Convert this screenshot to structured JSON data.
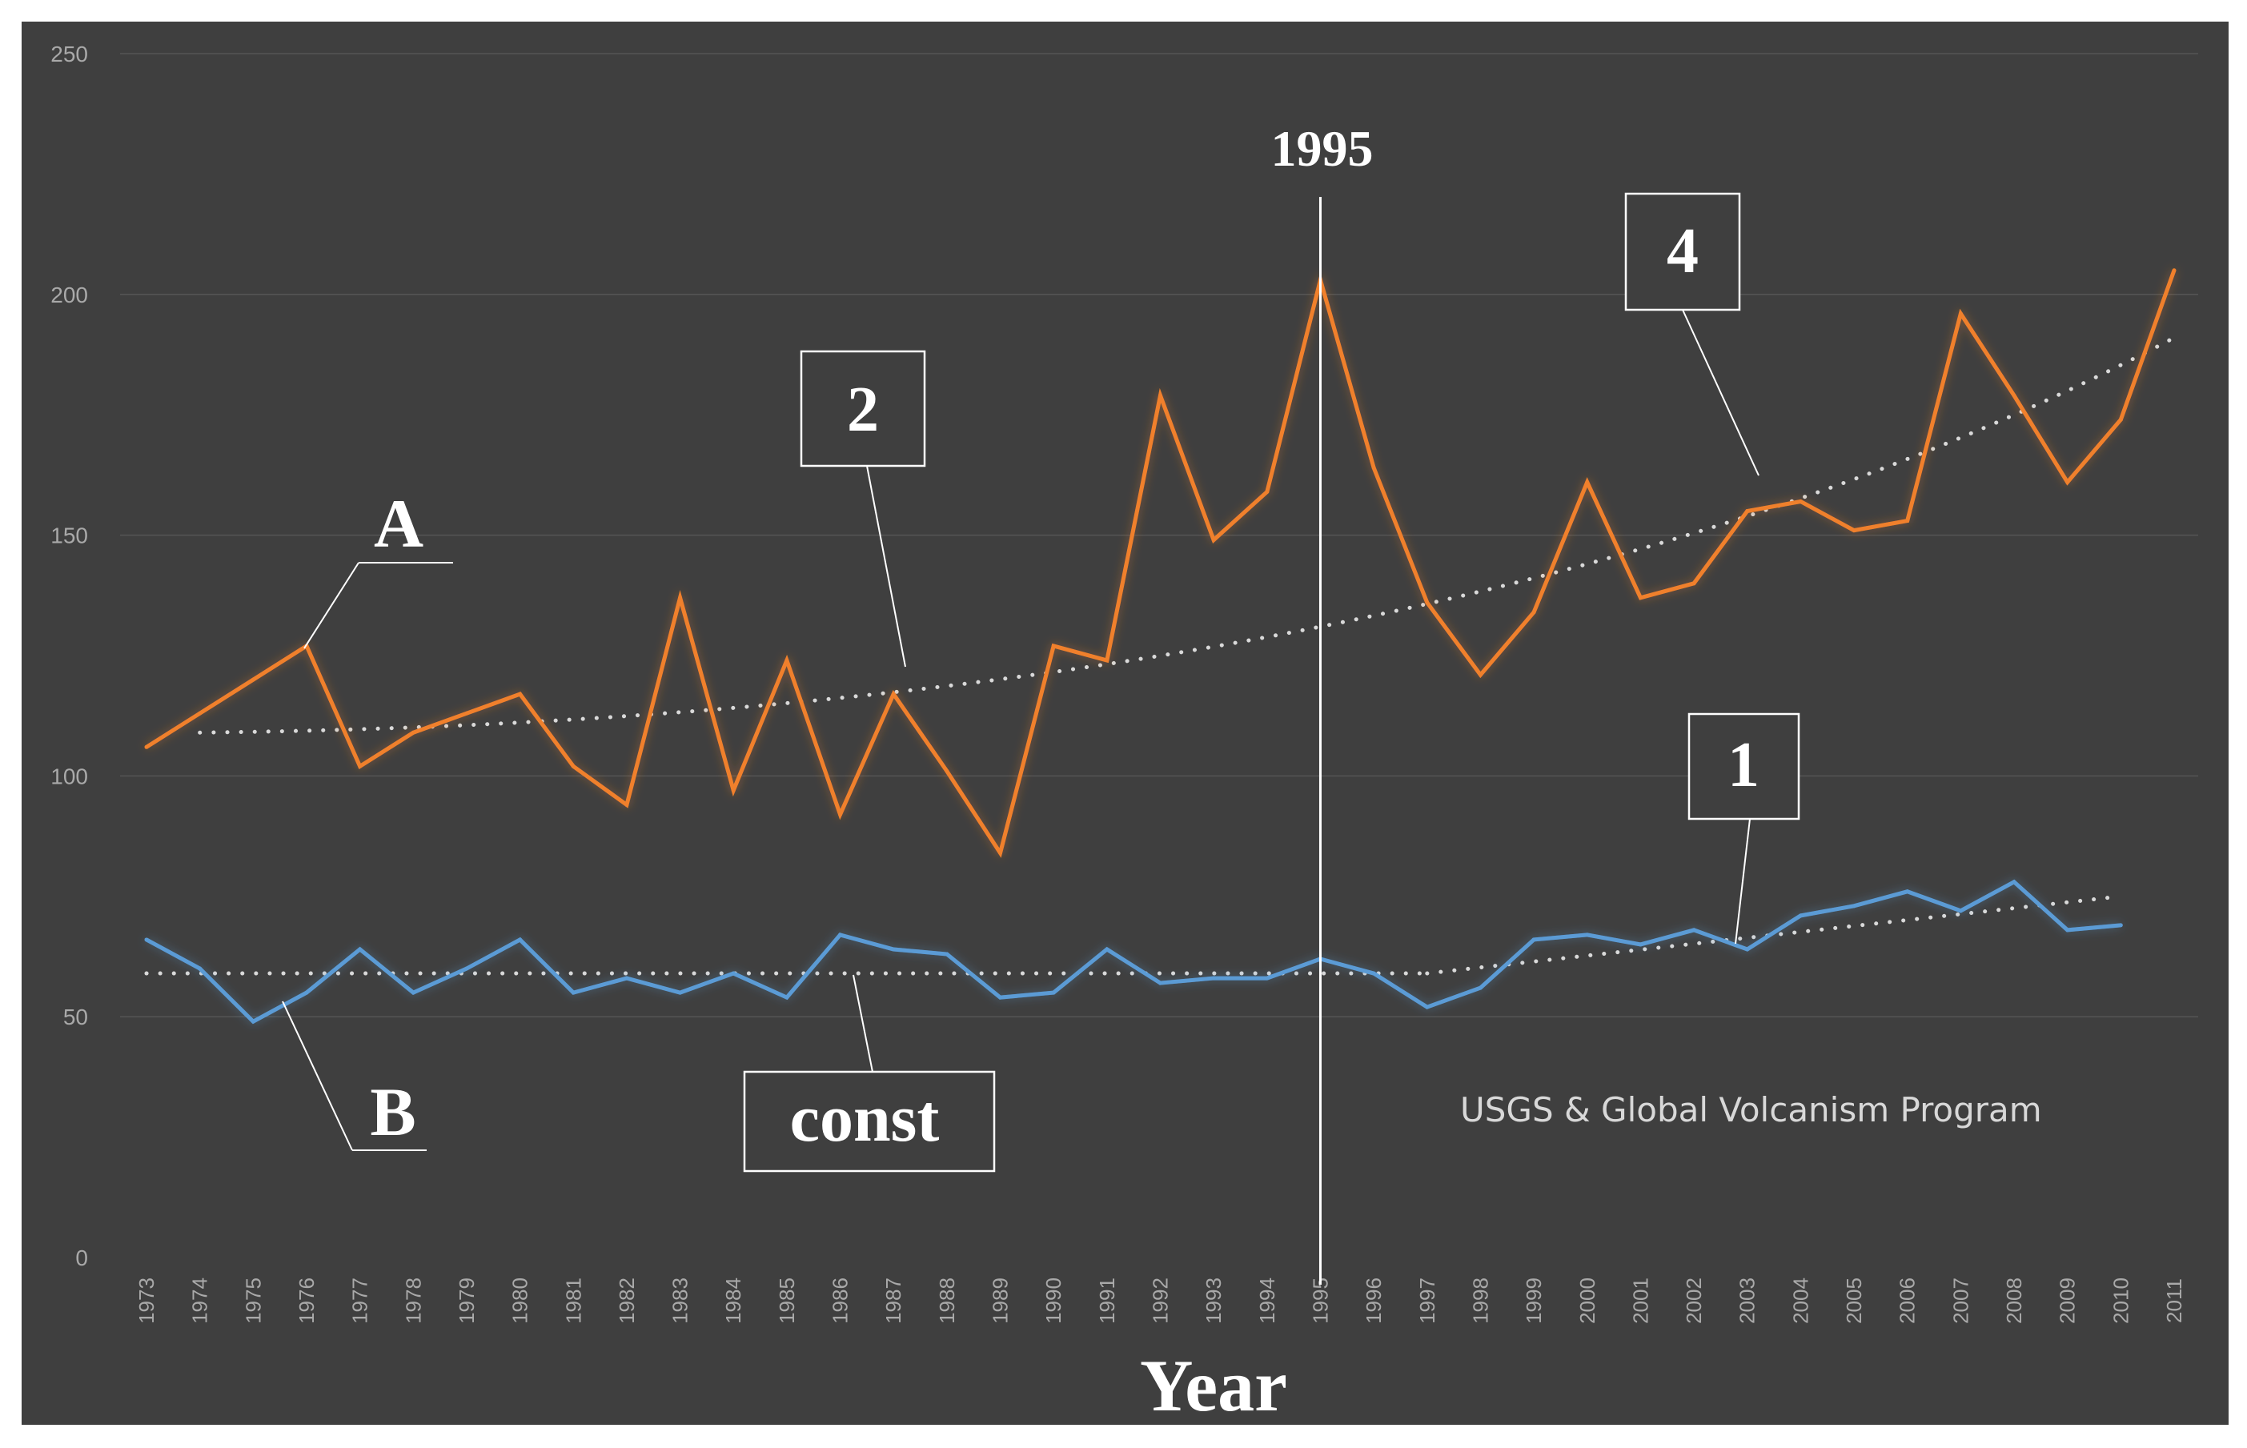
{
  "chart_data": {
    "type": "line",
    "title": "",
    "xlabel": "Year",
    "ylabel": "",
    "ylim": [
      0,
      250
    ],
    "yticks": [
      0,
      50,
      100,
      150,
      200,
      250
    ],
    "grid": true,
    "categories": [
      "1973",
      "1974",
      "1975",
      "1976",
      "1977",
      "1978",
      "1979",
      "1980",
      "1981",
      "1982",
      "1983",
      "1984",
      "1985",
      "1986",
      "1987",
      "1988",
      "1989",
      "1990",
      "1991",
      "1992",
      "1993",
      "1994",
      "1995",
      "1996",
      "1997",
      "1998",
      "1999",
      "2000",
      "2001",
      "2002",
      "2003",
      "2004",
      "2005",
      "2006",
      "2007",
      "2008",
      "2009",
      "2010",
      "2011"
    ],
    "series": [
      {
        "name": "A",
        "color": "#f0802c",
        "values": [
          106,
          113,
          120,
          127,
          102,
          109,
          113,
          117,
          102,
          94,
          137,
          97,
          124,
          92,
          117,
          101,
          84,
          127,
          124,
          179,
          149,
          159,
          203,
          164,
          136,
          121,
          134,
          161,
          137,
          140,
          155,
          157,
          151,
          153,
          196,
          179,
          161,
          174,
          205
        ]
      },
      {
        "name": "B",
        "color": "#5b9bd5",
        "values": [
          66,
          60,
          49,
          55,
          64,
          55,
          60,
          66,
          55,
          58,
          55,
          59,
          54,
          67,
          64,
          63,
          54,
          55,
          64,
          57,
          58,
          58,
          62,
          59,
          52,
          56,
          66,
          67,
          65,
          68,
          64,
          71,
          73,
          76,
          72,
          78,
          68,
          69,
          null
        ]
      }
    ],
    "trendlines": [
      {
        "name": "2",
        "series": "A",
        "shape": "polynomial",
        "color": "#d9d9d9",
        "x": [
          "1974",
          "1995",
          "2011"
        ],
        "values": [
          109,
          131,
          191
        ]
      },
      {
        "name": "const",
        "series": "B",
        "shape": "constant",
        "color": "#d9d9d9",
        "x": [
          "1973",
          "1997"
        ],
        "values": [
          59,
          59
        ]
      },
      {
        "name": "1",
        "series": "B",
        "shape": "linear",
        "color": "#d9d9d9",
        "x": [
          "1997",
          "2010"
        ],
        "values": [
          59,
          75
        ]
      }
    ],
    "reference_line": {
      "x": "1995",
      "label": "1995",
      "color": "#ffffff"
    },
    "annotations": [
      {
        "text": "A",
        "target": "series A"
      },
      {
        "text": "B",
        "target": "series B"
      },
      {
        "text": "2",
        "target": "trend 2"
      },
      {
        "text": "4",
        "target": "trend after 1995"
      },
      {
        "text": "1",
        "target": "trend 1"
      },
      {
        "text": "const",
        "target": "constant trend"
      }
    ],
    "source_note": "USGS & Global Volcanism Program"
  },
  "colors": {
    "background": "#3f3f3f",
    "gridline": "#555555",
    "tick_text": "#a9a9a9",
    "annotation": "#ffffff"
  }
}
